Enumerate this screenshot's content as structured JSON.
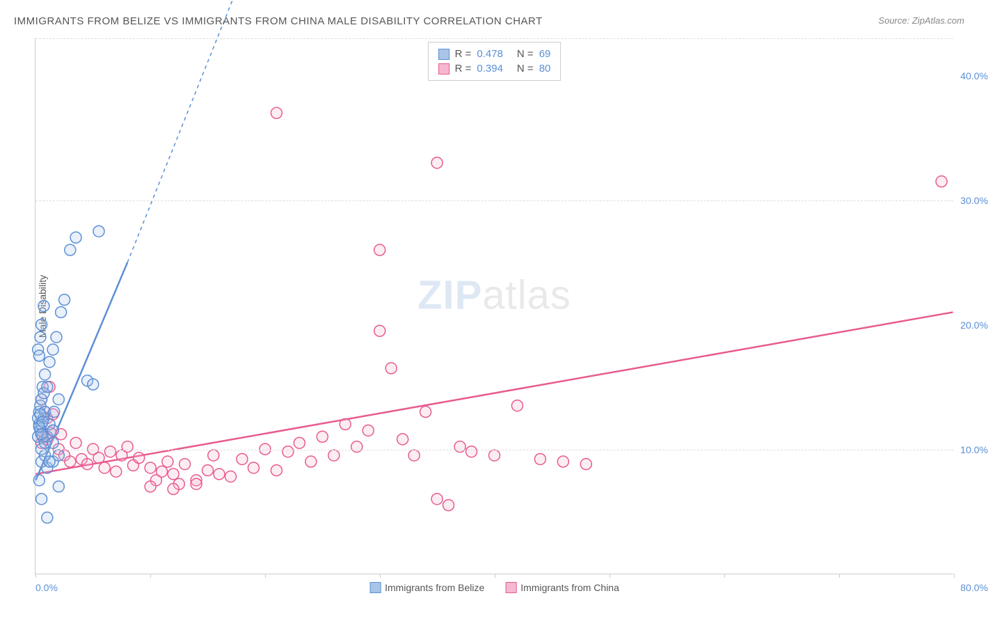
{
  "title": "IMMIGRANTS FROM BELIZE VS IMMIGRANTS FROM CHINA MALE DISABILITY CORRELATION CHART",
  "source_label": "Source:",
  "source_value": "ZipAtlas.com",
  "watermark_part1": "ZIP",
  "watermark_part2": "atlas",
  "chart": {
    "type": "scatter",
    "y_axis_title": "Male Disability",
    "xlim": [
      0,
      80
    ],
    "ylim": [
      0,
      43
    ],
    "x_ticks": [
      0,
      10,
      20,
      30,
      40,
      50,
      60,
      70,
      80
    ],
    "x_tick_labels": {
      "0": "0.0%",
      "80": "80.0%"
    },
    "y_gridlines": [
      10,
      30,
      43
    ],
    "y_tick_labels": {
      "10": "10.0%",
      "20": "20.0%",
      "30": "30.0%",
      "40": "40.0%"
    },
    "background_color": "#ffffff",
    "grid_color": "#dddddd",
    "axis_color": "#cccccc",
    "tick_label_color": "#5b8fd6",
    "marker_radius": 8,
    "marker_stroke_width": 1.5,
    "marker_fill_opacity": 0.25,
    "series": [
      {
        "id": "belize",
        "label": "Immigrants from Belize",
        "color_stroke": "#5b8fd6",
        "color_fill": "#a8c5e8",
        "R": "0.478",
        "N": "69",
        "trend": {
          "x1": 0,
          "y1": 7.5,
          "x2": 8,
          "y2": 25,
          "dash_x2": 18,
          "dash_y2": 48
        },
        "points": [
          [
            0.2,
            11
          ],
          [
            0.3,
            12
          ],
          [
            0.3,
            13
          ],
          [
            0.4,
            11.5
          ],
          [
            0.4,
            13.5
          ],
          [
            0.5,
            10
          ],
          [
            0.5,
            12
          ],
          [
            0.5,
            14
          ],
          [
            0.6,
            11
          ],
          [
            0.6,
            15
          ],
          [
            0.7,
            12.5
          ],
          [
            0.7,
            14.5
          ],
          [
            0.8,
            10.5
          ],
          [
            0.8,
            13
          ],
          [
            0.8,
            16
          ],
          [
            1.0,
            11
          ],
          [
            1.0,
            15
          ],
          [
            1.2,
            12
          ],
          [
            1.2,
            17
          ],
          [
            1.5,
            11.5
          ],
          [
            1.5,
            18
          ],
          [
            1.6,
            13
          ],
          [
            1.0,
            8.5
          ],
          [
            1.5,
            9
          ],
          [
            2.0,
            9.5
          ],
          [
            0.5,
            9
          ],
          [
            1.8,
            19
          ],
          [
            2.0,
            14
          ],
          [
            2.2,
            21
          ],
          [
            2.5,
            22
          ],
          [
            3.0,
            26
          ],
          [
            3.5,
            27
          ],
          [
            5.5,
            27.5
          ],
          [
            1.0,
            4.5
          ],
          [
            0.5,
            6
          ],
          [
            2.0,
            7
          ],
          [
            0.3,
            7.5
          ],
          [
            0.2,
            18
          ],
          [
            0.4,
            19
          ],
          [
            0.3,
            17.5
          ],
          [
            4.5,
            15.5
          ],
          [
            5.0,
            15.2
          ],
          [
            0.8,
            9.5
          ],
          [
            1.2,
            9
          ],
          [
            1.5,
            10.5
          ],
          [
            0.2,
            12.5
          ],
          [
            0.3,
            11.8
          ],
          [
            0.4,
            12.8
          ],
          [
            0.5,
            11.2
          ],
          [
            0.6,
            12.2
          ],
          [
            0.5,
            20
          ],
          [
            0.7,
            21.5
          ]
        ]
      },
      {
        "id": "china",
        "label": "Immigrants from China",
        "color_stroke": "#e85a8f",
        "color_fill": "#f5b8d0",
        "R": "0.394",
        "N": "80",
        "trend": {
          "x1": 0,
          "y1": 8,
          "x2": 80,
          "y2": 21
        },
        "points": [
          [
            0.5,
            14
          ],
          [
            0.8,
            13
          ],
          [
            1.0,
            12.5
          ],
          [
            1.2,
            15
          ],
          [
            1.5,
            11.5
          ],
          [
            2.0,
            10
          ],
          [
            2.5,
            9.5
          ],
          [
            3.0,
            9
          ],
          [
            3.5,
            10.5
          ],
          [
            4.0,
            9.2
          ],
          [
            4.5,
            8.8
          ],
          [
            5.0,
            10
          ],
          [
            5.5,
            9.3
          ],
          [
            6.0,
            8.5
          ],
          [
            6.5,
            9.8
          ],
          [
            7.0,
            8.2
          ],
          [
            7.5,
            9.5
          ],
          [
            8.0,
            10.2
          ],
          [
            8.5,
            8.7
          ],
          [
            9.0,
            9.3
          ],
          [
            10,
            8.5
          ],
          [
            10.5,
            7.5
          ],
          [
            11,
            8.2
          ],
          [
            11.5,
            9
          ],
          [
            12,
            8
          ],
          [
            12.5,
            7.2
          ],
          [
            13,
            8.8
          ],
          [
            14,
            7.5
          ],
          [
            15,
            8.3
          ],
          [
            15.5,
            9.5
          ],
          [
            16,
            8
          ],
          [
            17,
            7.8
          ],
          [
            18,
            9.2
          ],
          [
            19,
            8.5
          ],
          [
            20,
            10
          ],
          [
            21,
            8.3
          ],
          [
            22,
            9.8
          ],
          [
            23,
            10.5
          ],
          [
            24,
            9
          ],
          [
            25,
            11
          ],
          [
            26,
            9.5
          ],
          [
            27,
            12
          ],
          [
            28,
            10.2
          ],
          [
            29,
            11.5
          ],
          [
            30,
            19.5
          ],
          [
            31,
            16.5
          ],
          [
            32,
            10.8
          ],
          [
            33,
            9.5
          ],
          [
            34,
            13
          ],
          [
            35,
            6
          ],
          [
            36,
            5.5
          ],
          [
            37,
            10.2
          ],
          [
            38,
            9.8
          ],
          [
            40,
            9.5
          ],
          [
            42,
            13.5
          ],
          [
            44,
            9.2
          ],
          [
            46,
            9
          ],
          [
            48,
            8.8
          ],
          [
            35,
            33
          ],
          [
            21,
            37
          ],
          [
            30,
            26
          ],
          [
            79,
            31.5
          ],
          [
            10,
            7
          ],
          [
            12,
            6.8
          ],
          [
            14,
            7.2
          ],
          [
            0.8,
            11
          ],
          [
            1.5,
            12.8
          ],
          [
            2.2,
            11.2
          ],
          [
            0.5,
            10.5
          ],
          [
            1.0,
            10.8
          ],
          [
            1.3,
            11.3
          ]
        ]
      }
    ]
  },
  "legend_top": {
    "r_label": "R =",
    "n_label": "N ="
  }
}
